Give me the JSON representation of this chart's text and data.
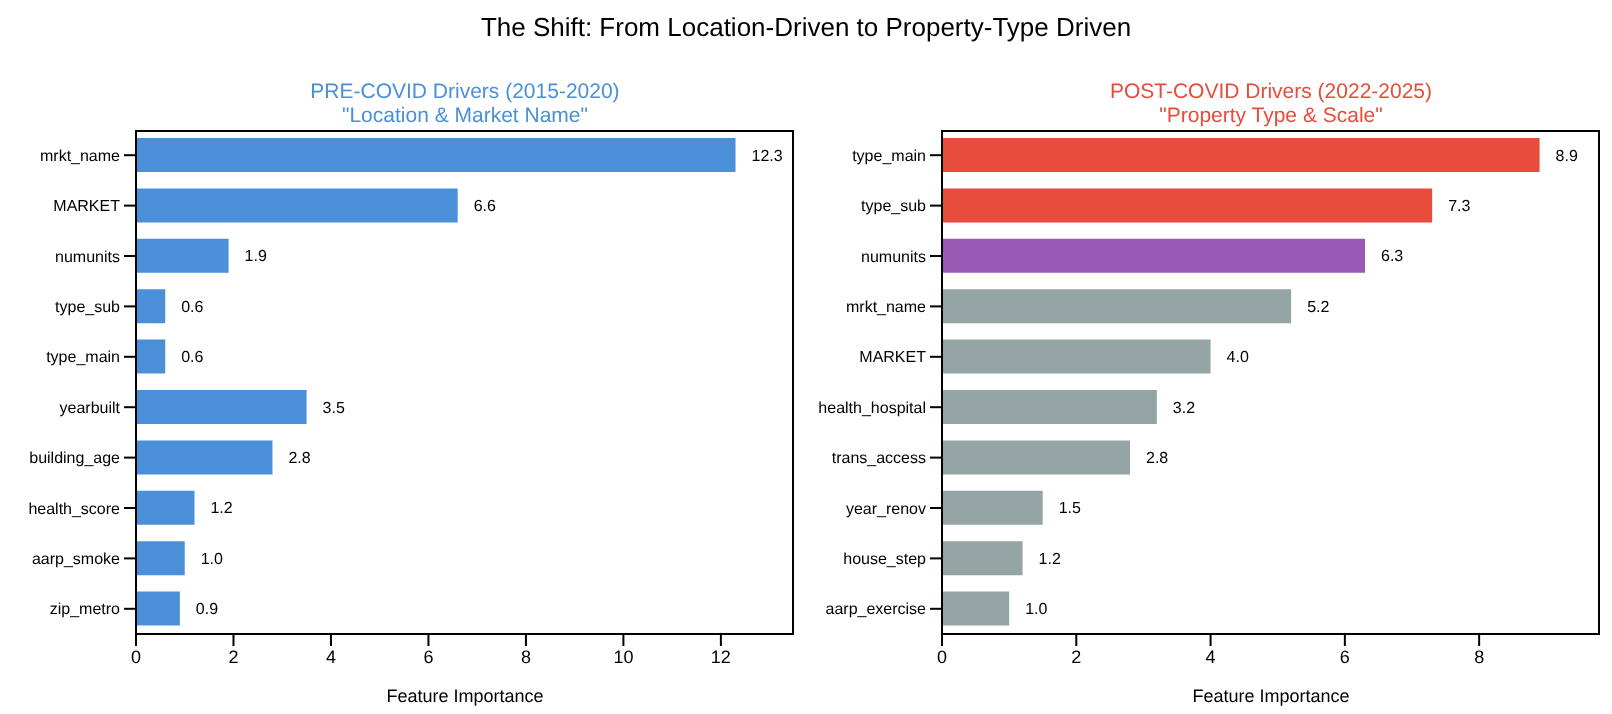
{
  "chart_data": [
    {
      "type": "bar",
      "orientation": "horizontal",
      "title": "PRE-COVID Drivers (2015-2020)",
      "subtitle": "\"Location & Market Name\"",
      "xlabel": "Feature Importance",
      "annotations": [
        "The Shift: From Location-Driven to Property-Type Driven"
      ],
      "categories": [
        "mrkt_name",
        "MARKET",
        "numunits",
        "type_sub",
        "type_main",
        "yearbuilt",
        "building_age",
        "health_score",
        "aarp_smoke",
        "zip_metro"
      ],
      "values": [
        12.3,
        6.6,
        1.9,
        0.6,
        0.6,
        3.5,
        2.8,
        1.2,
        1.0,
        0.9
      ],
      "value_labels": [
        "12.3",
        "6.6",
        "1.9",
        "0.6",
        "0.6",
        "3.5",
        "2.8",
        "1.2",
        "1.0",
        "0.9"
      ],
      "colors": [
        "#4a90d9",
        "#4a90d9",
        "#4a90d9",
        "#4a90d9",
        "#4a90d9",
        "#4a90d9",
        "#4a90d9",
        "#4a90d9",
        "#4a90d9",
        "#4a90d9"
      ],
      "xlim": [
        0,
        13.5
      ],
      "xticks": [
        0,
        2,
        4,
        6,
        8,
        10,
        12
      ],
      "grid": false,
      "legend": false
    },
    {
      "type": "bar",
      "orientation": "horizontal",
      "title": "POST-COVID Drivers (2022-2025)",
      "subtitle": "\"Property Type & Scale\"",
      "xlabel": "Feature Importance",
      "categories": [
        "type_main",
        "type_sub",
        "numunits",
        "mrkt_name",
        "MARKET",
        "health_hospital",
        "trans_access",
        "year_renov",
        "house_step",
        "aarp_exercise"
      ],
      "values": [
        8.9,
        7.3,
        6.3,
        5.2,
        4.0,
        3.2,
        2.8,
        1.5,
        1.2,
        1.0
      ],
      "value_labels": [
        "8.9",
        "7.3",
        "6.3",
        "5.2",
        "4.0",
        "3.2",
        "2.8",
        "1.5",
        "1.2",
        "1.0"
      ],
      "colors": [
        "#e74c3c",
        "#e74c3c",
        "#9b59b6",
        "#95a5a6",
        "#95a5a6",
        "#95a5a6",
        "#95a5a6",
        "#95a5a6",
        "#95a5a6",
        "#95a5a6"
      ],
      "xlim": [
        0,
        9.8
      ],
      "xticks": [
        0,
        2,
        4,
        6,
        8
      ],
      "grid": false,
      "legend": false
    }
  ]
}
